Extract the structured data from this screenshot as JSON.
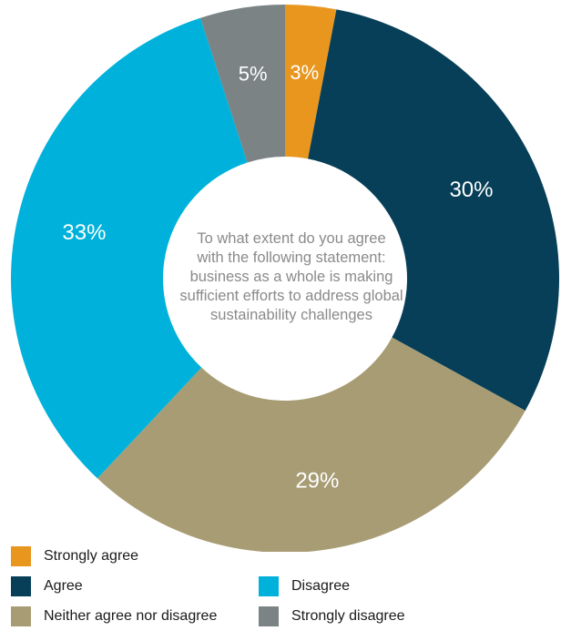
{
  "chart_data": {
    "type": "pie",
    "style": "donut",
    "center_text_lines": [
      "To what extent do you agree",
      "with the following statement:",
      "business as a whole is making",
      "sufficient efforts to address global",
      "sustainability challenges"
    ],
    "slices": [
      {
        "label": "Strongly agree",
        "value": 3,
        "display": "3%",
        "color": "#e8961e"
      },
      {
        "label": "Agree",
        "value": 30,
        "display": "30%",
        "color": "#063f57"
      },
      {
        "label": "Neither agree nor disagree",
        "value": 29,
        "display": "29%",
        "color": "#a89c74"
      },
      {
        "label": "Disagree",
        "value": 33,
        "display": "33%",
        "color": "#00b2db"
      },
      {
        "label": "Strongly disagree",
        "value": 5,
        "display": "5%",
        "color": "#7b8385"
      }
    ]
  },
  "legend": [
    {
      "label": "Strongly agree",
      "color": "#e8961e"
    },
    {
      "label": "Agree",
      "color": "#063f57"
    },
    {
      "label": "Disagree",
      "color": "#00b2db"
    },
    {
      "label": "Neither agree nor disagree",
      "color": "#a89c74"
    },
    {
      "label": "Strongly disagree",
      "color": "#7b8385"
    }
  ]
}
